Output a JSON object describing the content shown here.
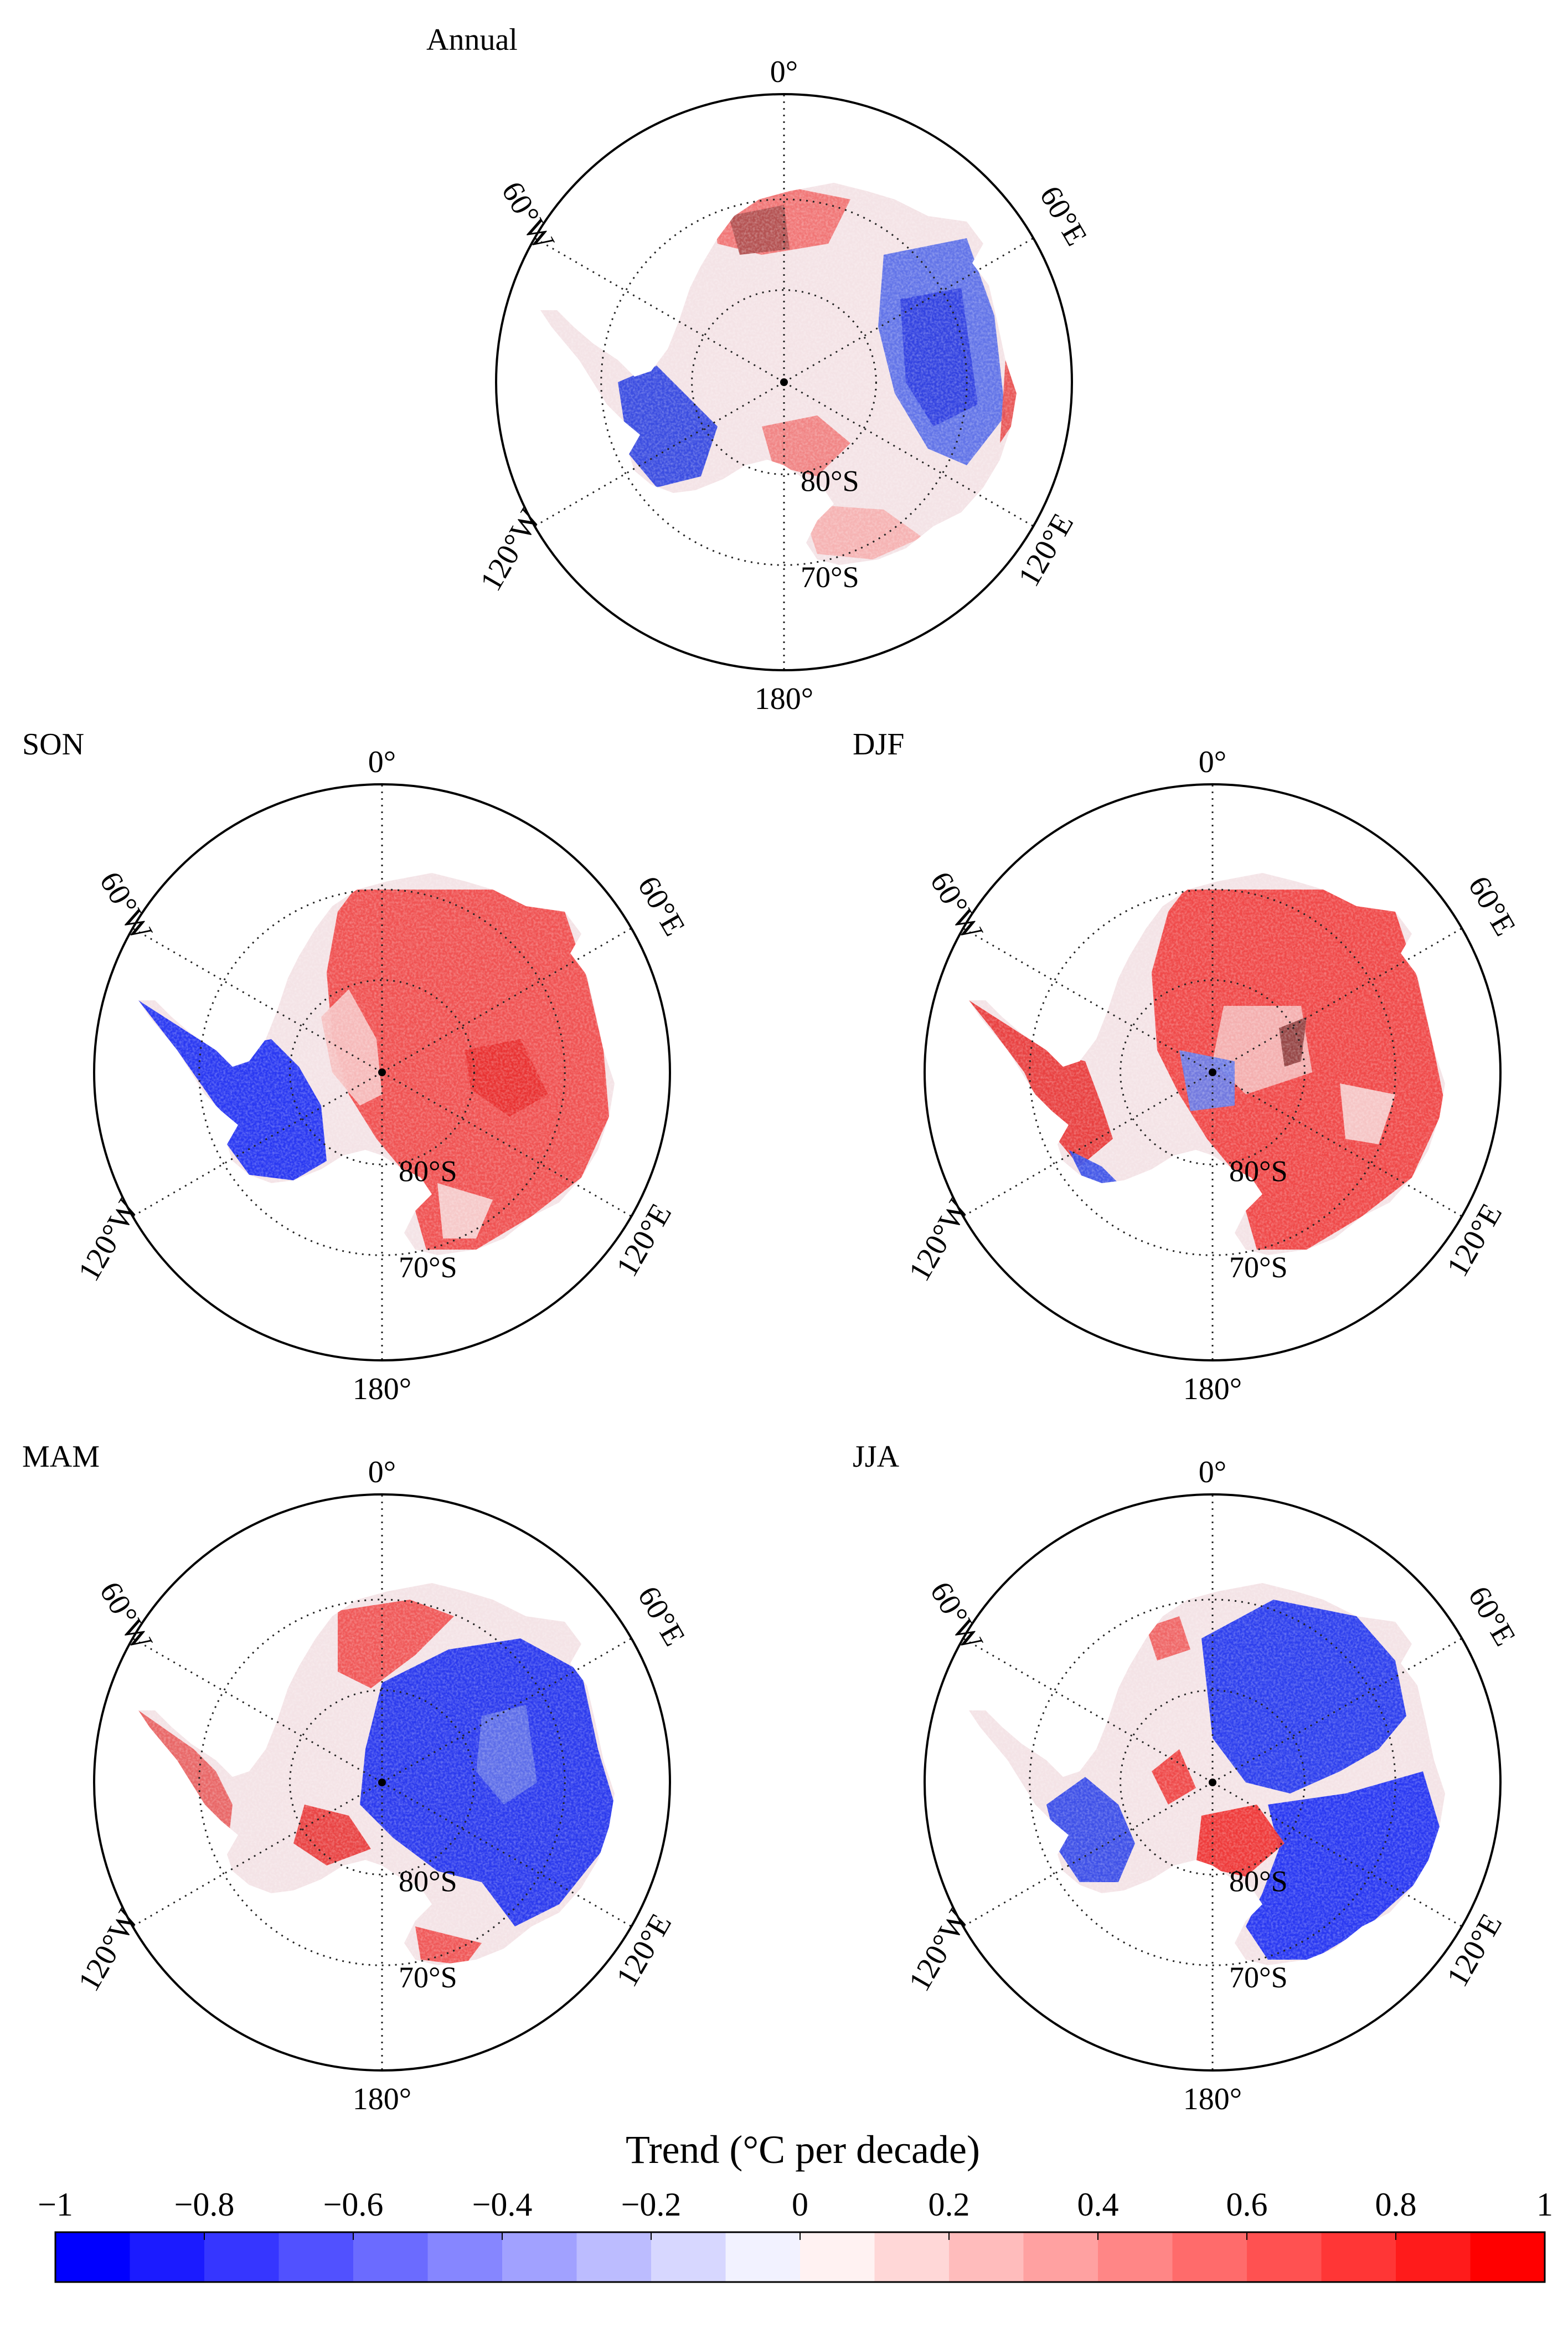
{
  "figure": {
    "description_free": true,
    "panels": [
      {
        "id": "annual",
        "title": "Annual",
        "pattern": "annual"
      },
      {
        "id": "son",
        "title": "SON",
        "pattern": "son"
      },
      {
        "id": "djf",
        "title": "DJF",
        "pattern": "djf"
      },
      {
        "id": "mam",
        "title": "MAM",
        "pattern": "mam"
      },
      {
        "id": "jja",
        "title": "JJA",
        "pattern": "jja"
      }
    ],
    "longitude_labels": {
      "top": "0°",
      "upper_left": "60°W",
      "upper_right": "60°E",
      "lower_left": "120°W",
      "lower_right": "120°E",
      "bottom": "180°"
    },
    "latitude_labels": {
      "inner": "80°S",
      "outer": "70°S"
    }
  },
  "colorbar": {
    "title": "Trend (°C per decade)",
    "tick_labels": [
      "−1",
      "−0.8",
      "−0.6",
      "−0.4",
      "−0.2",
      "0",
      "0.2",
      "0.4",
      "0.6",
      "0.8",
      "1"
    ],
    "range": [
      -1,
      1
    ],
    "n_bins": 20,
    "colors": {
      "negative_end": "#0000ff",
      "zero": "#ffffff",
      "positive_end": "#ff0000"
    }
  }
}
